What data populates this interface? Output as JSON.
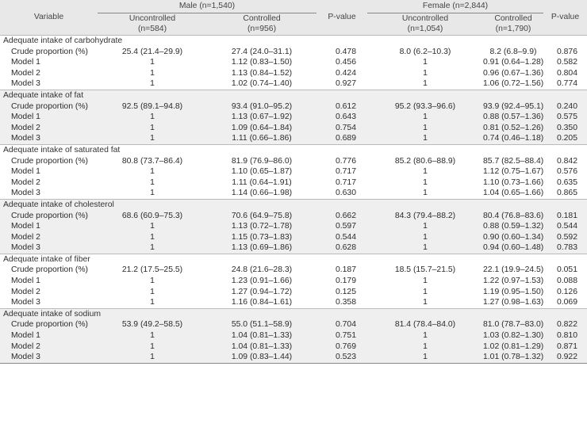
{
  "header": {
    "variable": "Variable",
    "male": "Male (n=1,540)",
    "female": "Female (n=2,844)",
    "pvalue": "P-value",
    "male_uncontrolled": [
      "Uncontrolled",
      "(n=584)"
    ],
    "male_controlled": [
      "Controlled",
      "(n=956)"
    ],
    "female_uncontrolled": [
      "Uncontrolled",
      "(n=1,054)"
    ],
    "female_controlled": [
      "Controlled",
      "(n=1,790)"
    ]
  },
  "sections": [
    {
      "title": "Adequate intake of carbohydrate",
      "rows": [
        [
          "Crude proportion (%)",
          "25.4 (21.4–29.9)",
          "27.4 (24.0–31.1)",
          "0.478",
          "8.0 (6.2–10.3)",
          "8.2 (6.8–9.9)",
          "0.876"
        ],
        [
          "Model 1",
          "1",
          "1.12 (0.83–1.50)",
          "0.456",
          "1",
          "0.91 (0.64–1.28)",
          "0.582"
        ],
        [
          "Model 2",
          "1",
          "1.13 (0.84–1.52)",
          "0.424",
          "1",
          "0.96 (0.67–1.36)",
          "0.804"
        ],
        [
          "Model 3",
          "1",
          "1.02 (0.74–1.40)",
          "0.927",
          "1",
          "1.06 (0.72–1.56)",
          "0.774"
        ]
      ]
    },
    {
      "title": "Adequate intake of fat",
      "rows": [
        [
          "Crude proportion (%)",
          "92.5 (89.1–94.8)",
          "93.4 (91.0–95.2)",
          "0.612",
          "95.2 (93.3–96.6)",
          "93.9 (92.4–95.1)",
          "0.240"
        ],
        [
          "Model 1",
          "1",
          "1.13 (0.67–1.92)",
          "0.643",
          "1",
          "0.88 (0.57–1.36)",
          "0.575"
        ],
        [
          "Model 2",
          "1",
          "1.09 (0.64–1.84)",
          "0.754",
          "1",
          "0.81 (0.52–1.26)",
          "0.350"
        ],
        [
          "Model 3",
          "1",
          "1.11 (0.66–1.86)",
          "0.689",
          "1",
          "0.74 (0.46–1.18)",
          "0.205"
        ]
      ]
    },
    {
      "title": "Adequate intake of saturated fat",
      "rows": [
        [
          "Crude proportion (%)",
          "80.8 (73.7–86.4)",
          "81.9 (76.9–86.0)",
          "0.776",
          "85.2 (80.6–88.9)",
          "85.7 (82.5–88.4)",
          "0.842"
        ],
        [
          "Model 1",
          "1",
          "1.10 (0.65–1.87)",
          "0.717",
          "1",
          "1.12 (0.75–1.67)",
          "0.576"
        ],
        [
          "Model 2",
          "1",
          "1.11 (0.64–1.91)",
          "0.717",
          "1",
          "1.10 (0.73–1.66)",
          "0.635"
        ],
        [
          "Model 3",
          "1",
          "1.14 (0.66–1.98)",
          "0.630",
          "1",
          "1.04 (0.65–1.66)",
          "0.865"
        ]
      ]
    },
    {
      "title": "Adequate intake of cholesterol",
      "rows": [
        [
          "Crude proportion (%)",
          "68.6 (60.9–75.3)",
          "70.6 (64.9–75.8)",
          "0.662",
          "84.3 (79.4–88.2)",
          "80.4 (76.8–83.6)",
          "0.181"
        ],
        [
          "Model 1",
          "1",
          "1.13 (0.72–1.78)",
          "0.597",
          "1",
          "0.88 (0.59–1.32)",
          "0.544"
        ],
        [
          "Model 2",
          "1",
          "1.15 (0.73–1.83)",
          "0.544",
          "1",
          "0.90 (0.60–1.34)",
          "0.592"
        ],
        [
          "Model 3",
          "1",
          "1.13 (0.69–1.86)",
          "0.628",
          "1",
          "0.94 (0.60–1.48)",
          "0.783"
        ]
      ]
    },
    {
      "title": "Adequate intake of fiber",
      "rows": [
        [
          "Crude proportion (%)",
          "21.2 (17.5–25.5)",
          "24.8 (21.6–28.3)",
          "0.187",
          "18.5 (15.7–21.5)",
          "22.1 (19.9–24.5)",
          "0.051"
        ],
        [
          "Model 1",
          "1",
          "1.23 (0.91–1.66)",
          "0.179",
          "1",
          "1.22 (0.97–1.53)",
          "0.088"
        ],
        [
          "Model 2",
          "1",
          "1.27 (0.94–1.72)",
          "0.125",
          "1",
          "1.19 (0.95–1.50)",
          "0.126"
        ],
        [
          "Model 3",
          "1",
          "1.16 (0.84–1.61)",
          "0.358",
          "1",
          "1.27 (0.98–1.63)",
          "0.069"
        ]
      ]
    },
    {
      "title": "Adequate intake of sodium",
      "rows": [
        [
          "Crude proportion (%)",
          "53.9 (49.2–58.5)",
          "55.0 (51.1–58.9)",
          "0.704",
          "81.4 (78.4–84.0)",
          "81.0 (78.7–83.0)",
          "0.822"
        ],
        [
          "Model 1",
          "1",
          "1.04 (0.81–1.33)",
          "0.751",
          "1",
          "1.03 (0.82–1.30)",
          "0.810"
        ],
        [
          "Model 2",
          "1",
          "1.04 (0.81–1.33)",
          "0.769",
          "1",
          "1.02 (0.81–1.29)",
          "0.871"
        ],
        [
          "Model 3",
          "1",
          "1.09 (0.83–1.44)",
          "0.523",
          "1",
          "1.01 (0.78–1.32)",
          "0.922"
        ]
      ]
    }
  ]
}
